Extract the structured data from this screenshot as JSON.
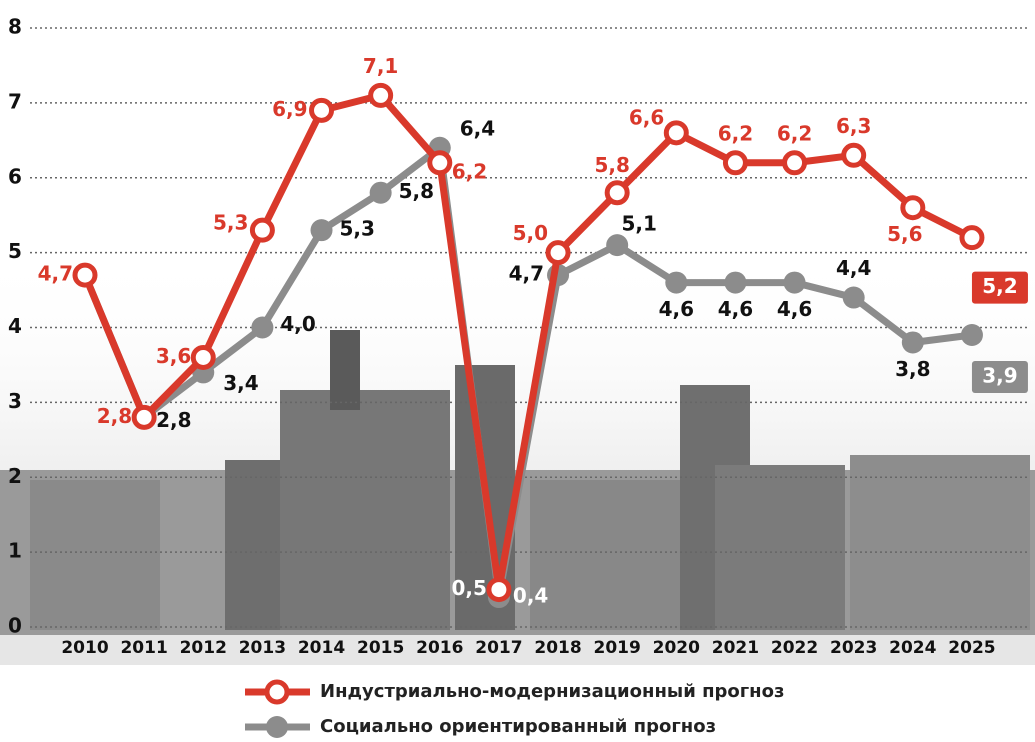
{
  "chart_data": {
    "type": "line",
    "categories": [
      "2010",
      "2011",
      "2012",
      "2013",
      "2014",
      "2015",
      "2016",
      "2017",
      "2018",
      "2019",
      "2020",
      "2021",
      "2022",
      "2023",
      "2024",
      "2025"
    ],
    "series": [
      {
        "name": "Индустриально-модернизационный прогноз",
        "color": "#d9392b",
        "values": [
          4.7,
          2.8,
          3.6,
          5.3,
          6.9,
          7.1,
          6.2,
          0.5,
          5.0,
          5.8,
          6.6,
          6.2,
          6.2,
          6.3,
          5.6,
          5.2
        ],
        "value_labels": [
          "4,7",
          "2,8",
          "3,6",
          "5,3",
          "6,9",
          "7,1",
          "6,2",
          "0,5",
          "5,0",
          "5,8",
          "6,6",
          "6,2",
          "6,2",
          "6,3",
          "5,6",
          "5,2"
        ]
      },
      {
        "name": "Социально ориентированный прогноз",
        "color": "#8c8c8c",
        "values": [
          4.7,
          2.8,
          3.4,
          4.0,
          5.3,
          5.8,
          6.4,
          0.4,
          4.7,
          5.1,
          4.6,
          4.6,
          4.6,
          4.4,
          3.8,
          3.9
        ],
        "value_labels": [
          null,
          "2,8",
          "3,4",
          "4,0",
          "5,3",
          "5,8",
          "6,4",
          "0,4",
          "4,7",
          "5,1",
          "4,6",
          "4,6",
          "4,6",
          "4,4",
          "3,8",
          "3,9"
        ]
      }
    ],
    "ylim": [
      0,
      8
    ],
    "yticks": [
      0,
      1,
      2,
      3,
      4,
      5,
      6,
      7,
      8
    ],
    "grid": true
  }
}
